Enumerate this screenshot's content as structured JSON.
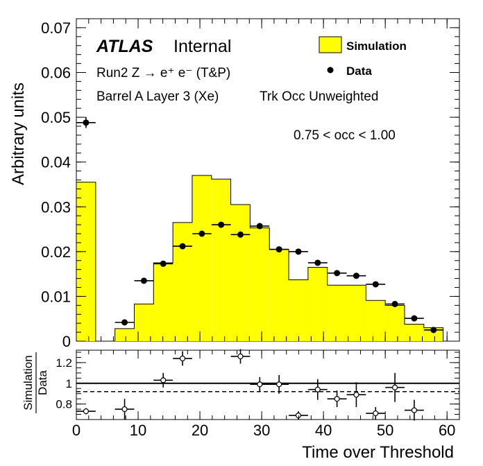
{
  "chart_data": [
    {
      "type": "histogram",
      "xlim": [
        0,
        62
      ],
      "ylim": [
        0,
        0.072
      ],
      "ylabel": "Arbitrary units",
      "x_ticks": [
        0,
        10,
        20,
        30,
        40,
        50,
        60
      ],
      "x_tick_labels": [
        "0",
        "10",
        "20",
        "30",
        "40",
        "50",
        "60"
      ],
      "y_ticks": [
        0,
        0.01,
        0.02,
        0.03,
        0.04,
        0.05,
        0.06,
        0.07
      ],
      "y_tick_labels": [
        "0",
        "0.01",
        "0.02",
        "0.03",
        "0.04",
        "0.05",
        "0.06",
        "0.07"
      ],
      "bin_edges": [
        0,
        3.125,
        6.25,
        9.375,
        12.5,
        15.625,
        18.75,
        21.875,
        25,
        28.125,
        31.25,
        34.375,
        37.5,
        40.625,
        43.75,
        46.875,
        50,
        53.125,
        56.25,
        59.375
      ],
      "series": [
        {
          "name": "Simulation",
          "kind": "filled-histogram",
          "color": "#ffff00",
          "values": [
            0.0355,
            0,
            0.0028,
            0.0083,
            0.0175,
            0.0265,
            0.037,
            0.0362,
            0.0305,
            0.0253,
            0.0205,
            0.0137,
            0.0165,
            0.0125,
            0.0125,
            0.0091,
            0.008,
            0.0038,
            0.003
          ]
        },
        {
          "name": "Data",
          "kind": "points",
          "color": "#000000",
          "values": [
            0.0488,
            null,
            0.0042,
            0.0135,
            0.0173,
            0.0212,
            0.024,
            0.026,
            0.0238,
            0.0257,
            0.0205,
            0.02,
            0.0175,
            0.0152,
            0.0146,
            0.0127,
            0.0083,
            0.0051,
            0.0025
          ],
          "errors": [
            0.0012,
            null,
            0.0003,
            0.0004,
            0.0005,
            0.0005,
            0.0006,
            0.0006,
            0.0006,
            0.0006,
            0.0005,
            0.0005,
            0.0005,
            0.0004,
            0.0004,
            0.0004,
            0.0003,
            0.0003,
            0.0002
          ]
        }
      ],
      "legend": {
        "placement": "top-right",
        "entries": [
          {
            "label": "Simulation",
            "style": "box"
          },
          {
            "label": "Data",
            "style": "marker"
          }
        ]
      },
      "annotations": {
        "atlas": "ATLAS",
        "internal": "Internal",
        "run": "Run2 Z → e⁺ e⁻ (T&P)",
        "region": "Barrel A Layer 3 (Xe)",
        "mode": "Trk Occ Unweighted",
        "occ": "0.75 < occ < 1.00"
      }
    },
    {
      "type": "ratio",
      "xlim": [
        0,
        62
      ],
      "ylim": [
        0.65,
        1.32
      ],
      "xlabel": "Time over Threshold",
      "ylabel_top": "Simulation",
      "ylabel_bottom": "Data",
      "y_ticks": [
        0.8,
        1,
        1.2
      ],
      "y_tick_labels": [
        "0.8",
        "1",
        "1.2"
      ],
      "x_ticks": [
        0,
        10,
        20,
        30,
        40,
        50,
        60
      ],
      "x_tick_labels": [
        "0",
        "10",
        "20",
        "30",
        "40",
        "50",
        "60"
      ],
      "reference_line": 1.0,
      "dashed_line": 0.92,
      "points": [
        {
          "x": 1.5625,
          "y": 0.73,
          "err": 0.03
        },
        {
          "x": 7.8125,
          "y": 0.75,
          "err": 0.1
        },
        {
          "x": 14.0625,
          "y": 1.03,
          "err": 0.07
        },
        {
          "x": 17.1875,
          "y": 1.24,
          "err": 0.07
        },
        {
          "x": 26.5625,
          "y": 1.26,
          "err": 0.07
        },
        {
          "x": 29.6875,
          "y": 0.99,
          "err": 0.07
        },
        {
          "x": 32.8125,
          "y": 0.99,
          "err": 0.09
        },
        {
          "x": 35.9375,
          "y": 0.69,
          "err": 0.04
        },
        {
          "x": 39.0625,
          "y": 0.94,
          "err": 0.1
        },
        {
          "x": 42.1875,
          "y": 0.85,
          "err": 0.08
        },
        {
          "x": 45.3125,
          "y": 0.89,
          "err": 0.12
        },
        {
          "x": 48.4375,
          "y": 0.71,
          "err": 0.06
        },
        {
          "x": 51.5625,
          "y": 0.96,
          "err": 0.14
        },
        {
          "x": 54.6875,
          "y": 0.74,
          "err": 0.1
        }
      ]
    }
  ]
}
